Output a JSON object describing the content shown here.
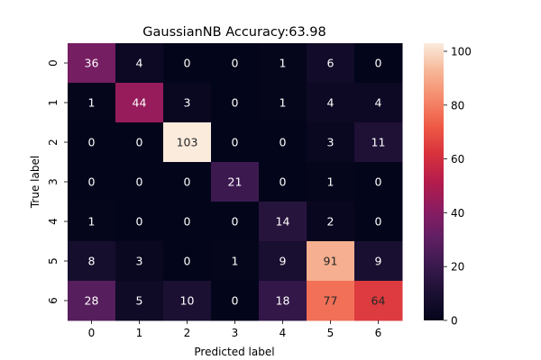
{
  "chart_data": {
    "type": "heatmap",
    "title": "GaussianNB Accuracy:63.98",
    "xlabel": "Predicted label",
    "ylabel": "True label",
    "x_categories": [
      "0",
      "1",
      "2",
      "3",
      "4",
      "5",
      "6"
    ],
    "y_categories": [
      "0",
      "1",
      "2",
      "3",
      "4",
      "5",
      "6"
    ],
    "values": [
      [
        36,
        4,
        0,
        0,
        1,
        6,
        0
      ],
      [
        1,
        44,
        3,
        0,
        1,
        4,
        4
      ],
      [
        0,
        0,
        103,
        0,
        0,
        3,
        11
      ],
      [
        0,
        0,
        0,
        21,
        0,
        1,
        0
      ],
      [
        1,
        0,
        0,
        0,
        14,
        2,
        0
      ],
      [
        8,
        3,
        0,
        1,
        9,
        91,
        9
      ],
      [
        28,
        5,
        10,
        0,
        18,
        77,
        64
      ]
    ],
    "colorbar": {
      "min": 0,
      "max": 103,
      "ticks": [
        "0",
        "20",
        "40",
        "60",
        "80",
        "100"
      ]
    },
    "colormap": "rocket",
    "grid": false,
    "legend": "none"
  }
}
